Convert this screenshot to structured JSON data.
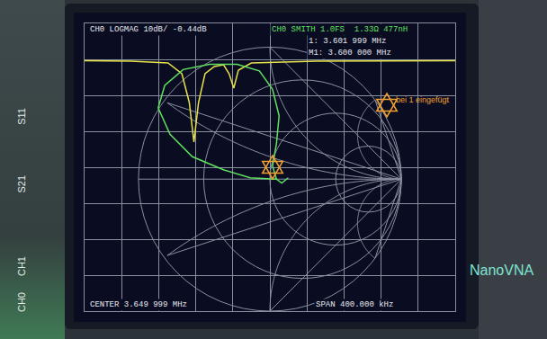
{
  "chart_data": [
    {
      "type": "line",
      "title": "CH0 LOGMAG 10dB/ -0.44dB",
      "annotations": [
        "CENTER 3.649 999 MHz",
        "SPAN 400.000 kHz"
      ],
      "x": [
        3.449999,
        3.5,
        3.54,
        3.555,
        3.563,
        3.568,
        3.573,
        3.58,
        3.59,
        3.6,
        3.606,
        3.611,
        3.616,
        3.63,
        3.7,
        3.8,
        3.849999
      ],
      "values": [
        -0.4,
        -0.5,
        -1,
        -4,
        -12,
        -23,
        -12,
        -4,
        -2,
        -1.5,
        -4,
        -8,
        -3,
        -1,
        -0.5,
        -0.4,
        -0.4
      ],
      "color": "#e8e048",
      "xlim": [
        3.449999,
        3.849999
      ],
      "xticks": [
        3.449999,
        3.489999,
        3.529999,
        3.569999,
        3.609999,
        3.649999,
        3.689999,
        3.729999,
        3.769999,
        3.809999,
        3.849999
      ],
      "ylim": [
        -70,
        10
      ],
      "yticks": [
        -70,
        -60,
        -50,
        -40,
        -30,
        -20,
        -10,
        0,
        10
      ],
      "grid": true,
      "tick_labels": false
    },
    {
      "type": "smith",
      "title": "CH0 SMITH 1.0FS  1.33Ω 477nH",
      "annotations": [
        "1: 3.601 999 MHz",
        "M1: 3.600 000 MHz"
      ],
      "x": [
        0.05,
        0.02,
        0.05,
        0.07,
        0.02,
        -0.08,
        -0.25,
        -0.46,
        -0.66,
        -0.8,
        -0.85,
        -0.76,
        -0.59,
        -0.35,
        -0.15,
        0.05,
        0.09,
        0.14
      ],
      "values": [
        0,
        0.1,
        0.27,
        0.48,
        0.68,
        0.82,
        0.87,
        0.87,
        0.83,
        0.71,
        0.54,
        0.34,
        0.17,
        0.07,
        0.01,
        0,
        -0.03,
        0.01
      ],
      "color": "#60e060",
      "xlim": [
        -1.41,
        1.41
      ],
      "ylim": [
        -1.0,
        1.18
      ],
      "grid": true,
      "tick_labels": false
    }
  ],
  "device": {
    "name": "NanoVNA",
    "side_labels": [
      "S11",
      "S21",
      "CH1",
      "CH0"
    ]
  },
  "note": "bei 1 eingefügt"
}
